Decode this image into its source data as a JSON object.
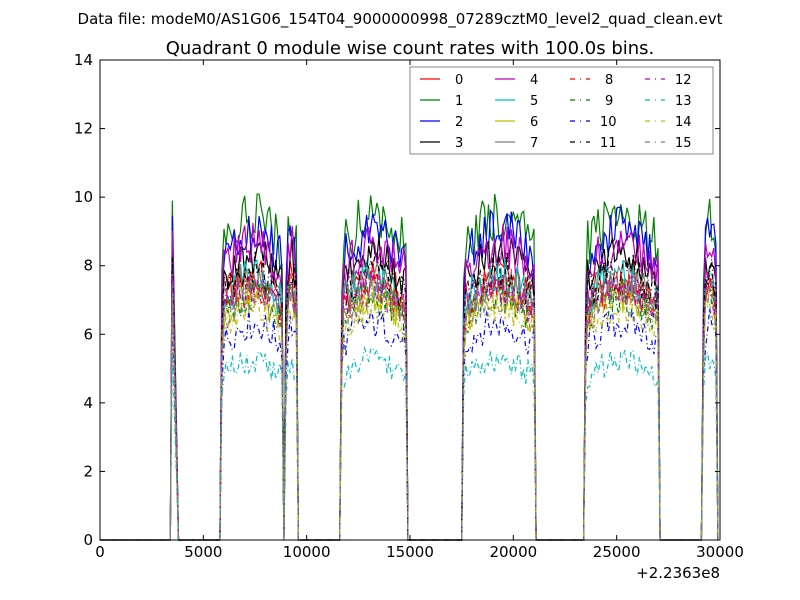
{
  "chart_data": {
    "type": "line",
    "suptitle": "Data file: modeM0/AS1G06_154T04_9000000998_07289cztM0_level2_quad_clean.evt",
    "title": "Quadrant 0 module wise count rates with 100.0s bins.",
    "xlabel": "",
    "ylabel": "",
    "x_offset_label": "+2.2363e8",
    "xlim": [
      0,
      30000
    ],
    "ylim": [
      0,
      14
    ],
    "xticks": [
      "0",
      "5000",
      "10000",
      "15000",
      "20000",
      "25000",
      "30000"
    ],
    "yticks": [
      "0",
      "2",
      "4",
      "6",
      "8",
      "10",
      "12",
      "14"
    ],
    "bin_size": 100,
    "active_intervals": [
      [
        3500,
        3800
      ],
      [
        5900,
        8800
      ],
      [
        9000,
        9500
      ],
      [
        11700,
        14800
      ],
      [
        17600,
        21000
      ],
      [
        23500,
        27000
      ],
      [
        29200,
        29800
      ]
    ],
    "legend_position": "top-right",
    "series": [
      {
        "name": "0",
        "color": "#ff0000",
        "dashed": false,
        "mean_rate": 7.3
      },
      {
        "name": "1",
        "color": "#008000",
        "dashed": false,
        "mean_rate": 9.0
      },
      {
        "name": "2",
        "color": "#0000ff",
        "dashed": false,
        "mean_rate": 8.6
      },
      {
        "name": "3",
        "color": "#000000",
        "dashed": false,
        "mean_rate": 7.9
      },
      {
        "name": "4",
        "color": "#bf00bf",
        "dashed": false,
        "mean_rate": 8.2
      },
      {
        "name": "5",
        "color": "#00bfbf",
        "dashed": false,
        "mean_rate": 7.3
      },
      {
        "name": "6",
        "color": "#bfbf00",
        "dashed": false,
        "mean_rate": 6.8
      },
      {
        "name": "7",
        "color": "#808080",
        "dashed": false,
        "mean_rate": 7.2
      },
      {
        "name": "8",
        "color": "#ff0000",
        "dashed": true,
        "mean_rate": 7.0
      },
      {
        "name": "9",
        "color": "#008000",
        "dashed": true,
        "mean_rate": 6.8
      },
      {
        "name": "10",
        "color": "#0000ff",
        "dashed": true,
        "mean_rate": 6.0
      },
      {
        "name": "11",
        "color": "#000000",
        "dashed": true,
        "mean_rate": 7.5
      },
      {
        "name": "12",
        "color": "#bf00bf",
        "dashed": true,
        "mean_rate": 7.0
      },
      {
        "name": "13",
        "color": "#00bfbf",
        "dashed": true,
        "mean_rate": 5.0
      },
      {
        "name": "14",
        "color": "#bfbf00",
        "dashed": true,
        "mean_rate": 6.5
      },
      {
        "name": "15",
        "color": "#808080",
        "dashed": true,
        "mean_rate": 6.8
      }
    ]
  }
}
